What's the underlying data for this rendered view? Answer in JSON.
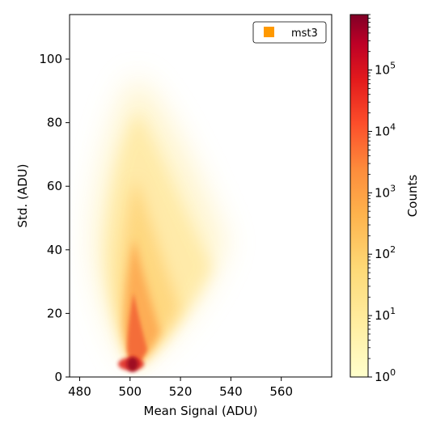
{
  "chart_data": {
    "type": "heatmap",
    "xlabel": "Mean Signal (ADU)",
    "ylabel": "Std. (ADU)",
    "xlim": [
      476,
      580
    ],
    "ylim": [
      0,
      114
    ],
    "x_ticks": [
      480,
      500,
      520,
      540,
      560
    ],
    "y_ticks": [
      0,
      20,
      40,
      60,
      80,
      100
    ],
    "legend": {
      "placement": "top-right",
      "entries": [
        {
          "label": "mst3",
          "color": "#ff9900"
        }
      ]
    },
    "colorbar": {
      "label": "Counts",
      "scale": "log",
      "range": [
        1,
        800000
      ],
      "ticks": [
        {
          "value": 1,
          "base": "10",
          "exp": "0"
        },
        {
          "value": 10,
          "base": "10",
          "exp": "1"
        },
        {
          "value": 100,
          "base": "10",
          "exp": "2"
        },
        {
          "value": 1000,
          "base": "10",
          "exp": "3"
        },
        {
          "value": 10000,
          "base": "10",
          "exp": "4"
        },
        {
          "value": 100000,
          "base": "10",
          "exp": "5"
        }
      ],
      "colormap": "YlOrRd"
    },
    "grid": false,
    "density": {
      "peak": {
        "x": 501,
        "y": 4,
        "counts": 800000
      },
      "ridge_points": [
        {
          "x": 501,
          "y": 4
        },
        {
          "x": 502,
          "y": 20
        },
        {
          "x": 503,
          "y": 40
        },
        {
          "x": 503,
          "y": 60
        },
        {
          "x": 504,
          "y": 80
        }
      ],
      "extent": {
        "x_min": 488,
        "x_max": 540,
        "y_max": 90
      }
    }
  }
}
